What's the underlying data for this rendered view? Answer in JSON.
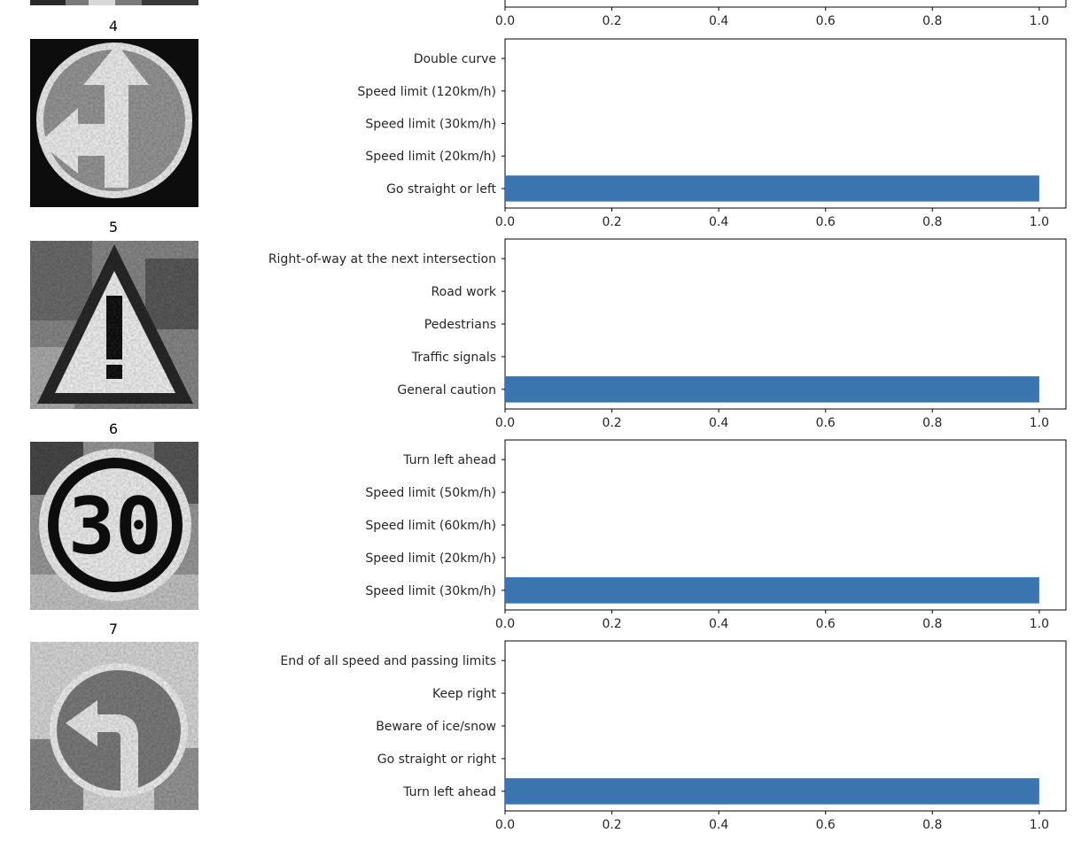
{
  "colors": {
    "bar": "#3a75af",
    "axis": "#000000",
    "tick_text": "#262626"
  },
  "thumbnail_icons": [
    "partial-sign-thumbnail",
    "go-straight-or-left-sign",
    "general-caution-sign",
    "speed-limit-30-sign",
    "turn-left-ahead-sign"
  ],
  "chart_data": [
    {
      "type": "bar",
      "orientation": "horizontal",
      "panel_label": "",
      "categories": [],
      "values": [],
      "xlim": [
        0,
        1.05
      ],
      "xticks": [
        "0.0",
        "0.2",
        "0.4",
        "0.6",
        "0.8",
        "1.0"
      ],
      "grid": false
    },
    {
      "type": "bar",
      "orientation": "horizontal",
      "panel_label": "4",
      "categories": [
        "Double curve",
        "Speed limit (120km/h)",
        "Speed limit (30km/h)",
        "Speed limit (20km/h)",
        "Go straight or left"
      ],
      "values": [
        0,
        0,
        0,
        0,
        1.0
      ],
      "xlim": [
        0,
        1.05
      ],
      "xticks": [
        "0.0",
        "0.2",
        "0.4",
        "0.6",
        "0.8",
        "1.0"
      ],
      "grid": false
    },
    {
      "type": "bar",
      "orientation": "horizontal",
      "panel_label": "5",
      "categories": [
        "Right-of-way at the next intersection",
        "Road work",
        "Pedestrians",
        "Traffic signals",
        "General caution"
      ],
      "values": [
        0,
        0,
        0,
        0,
        1.0
      ],
      "xlim": [
        0,
        1.05
      ],
      "xticks": [
        "0.0",
        "0.2",
        "0.4",
        "0.6",
        "0.8",
        "1.0"
      ],
      "grid": false
    },
    {
      "type": "bar",
      "orientation": "horizontal",
      "panel_label": "6",
      "categories": [
        "Turn left ahead",
        "Speed limit (50km/h)",
        "Speed limit (60km/h)",
        "Speed limit (20km/h)",
        "Speed limit (30km/h)"
      ],
      "values": [
        0,
        0,
        0,
        0,
        1.0
      ],
      "xlim": [
        0,
        1.05
      ],
      "xticks": [
        "0.0",
        "0.2",
        "0.4",
        "0.6",
        "0.8",
        "1.0"
      ],
      "grid": false
    },
    {
      "type": "bar",
      "orientation": "horizontal",
      "panel_label": "7",
      "categories": [
        "End of all speed and passing limits",
        "Keep right",
        "Beware of ice/snow",
        "Go straight or right",
        "Turn left ahead"
      ],
      "values": [
        0,
        0,
        0,
        0,
        1.0
      ],
      "xlim": [
        0,
        1.05
      ],
      "xticks": [
        "0.0",
        "0.2",
        "0.4",
        "0.6",
        "0.8",
        "1.0"
      ],
      "grid": false
    }
  ]
}
